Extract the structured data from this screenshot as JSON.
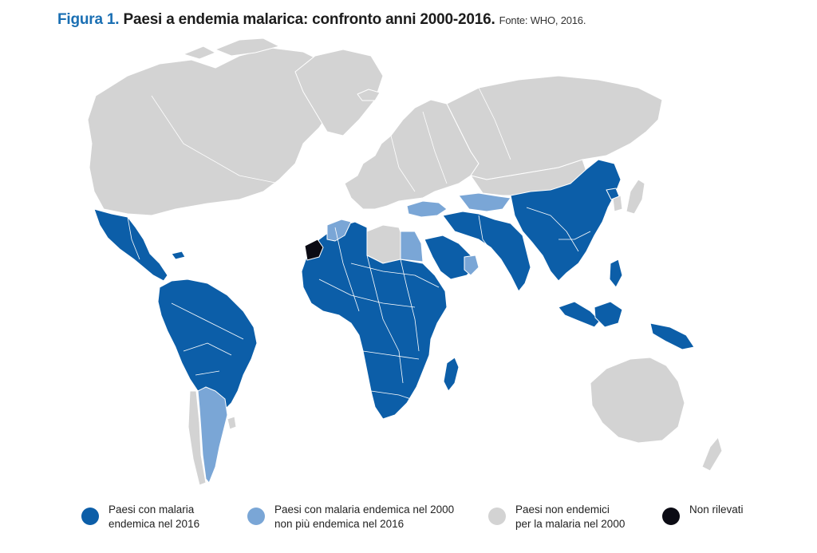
{
  "title": {
    "figure": "Figura 1.",
    "main": "Paesi a endemia malarica: confronto anni 2000-2016.",
    "source": "Fonte: WHO, 2016."
  },
  "colors": {
    "endemic_2016": "#0c5ea8",
    "no_longer_endemic": "#7aa6d6",
    "non_endemic": "#d3d3d3",
    "not_surveyed": "#0b0b14",
    "borders": "#ffffff"
  },
  "legend": {
    "endemic_2016": {
      "line1": "Paesi con malaria",
      "line2": "endemica nel 2016"
    },
    "no_longer_endemic": {
      "line1": "Paesi con malaria endemica nel 2000",
      "line2": "non più endemica nel 2016"
    },
    "non_endemic": {
      "line1": "Paesi non endemici",
      "line2": "per la malaria nel 2000"
    },
    "not_surveyed": {
      "line1": "Non rilevati"
    }
  }
}
